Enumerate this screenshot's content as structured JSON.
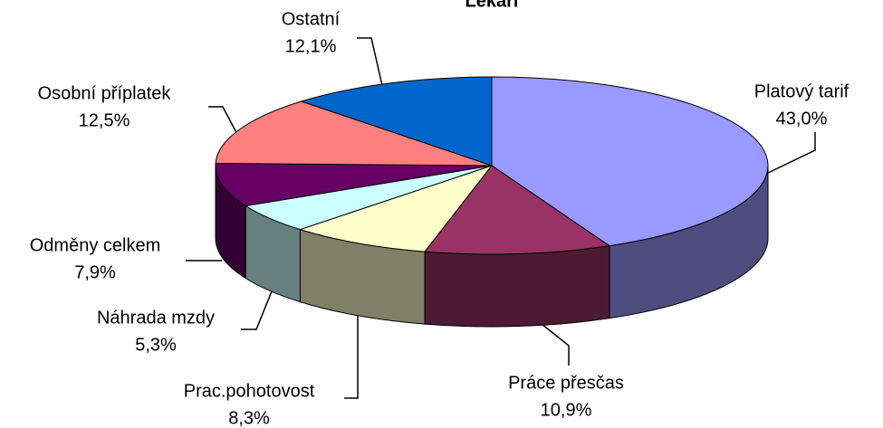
{
  "chart_data": {
    "type": "pie",
    "title": "Lékaři",
    "categories": [
      "Platový tarif",
      "Práce přesčas",
      "Prac.pohotovost",
      "Náhrada mzdy",
      "Odměny celkem",
      "Osobní příplatek",
      "Ostatní"
    ],
    "values": [
      43.0,
      10.9,
      8.3,
      5.3,
      7.9,
      12.5,
      12.1
    ],
    "value_labels": [
      "43,0%",
      "10,9%",
      "8,3%",
      "5,3%",
      "7,9%",
      "12,5%",
      "12,1%"
    ],
    "colors": [
      "#9999ff",
      "#993366",
      "#ffffcc",
      "#ccffff",
      "#660066",
      "#ff8080",
      "#0066cc"
    ]
  }
}
